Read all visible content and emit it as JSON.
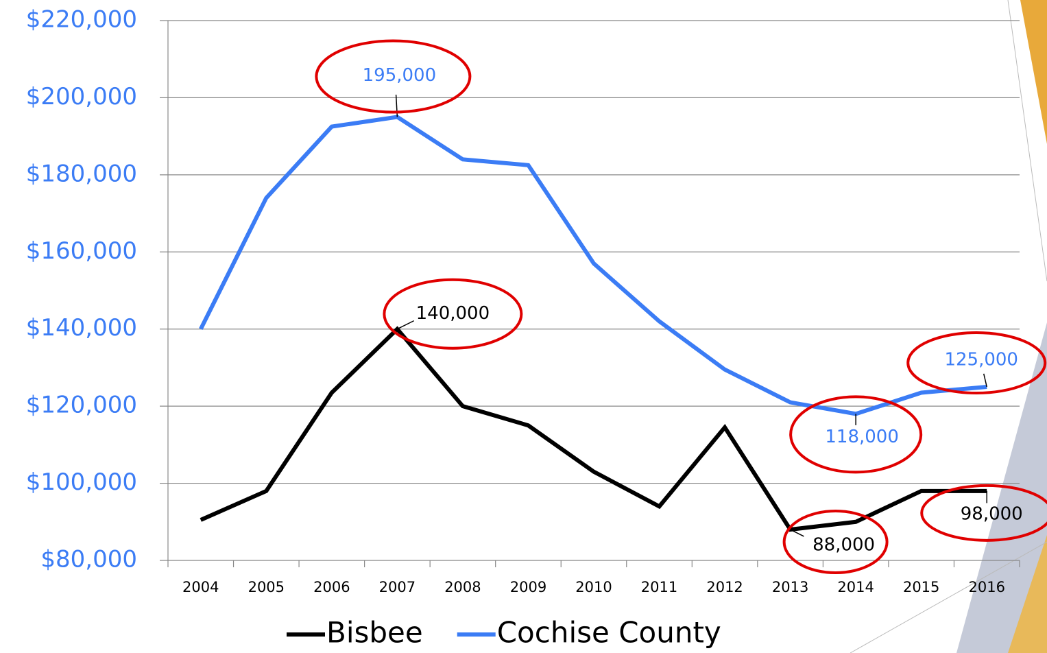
{
  "chart_data": {
    "type": "line",
    "categories": [
      "2004",
      "2005",
      "2006",
      "2007",
      "2008",
      "2009",
      "2010",
      "2011",
      "2012",
      "2013",
      "2014",
      "2015",
      "2016"
    ],
    "series": [
      {
        "name": "Bisbee",
        "color": "#000000",
        "values": [
          90500,
          98000,
          123500,
          140000,
          120000,
          115000,
          103000,
          94000,
          114500,
          88000,
          90000,
          98000,
          98000
        ],
        "value_labels": [
          null,
          null,
          null,
          "140,000",
          null,
          null,
          null,
          null,
          null,
          "88,000",
          null,
          null,
          "98,000"
        ]
      },
      {
        "name": "Cochise County",
        "color": "#3b7cf5",
        "values": [
          140000,
          174000,
          192500,
          195000,
          184000,
          182500,
          157000,
          142000,
          129500,
          121000,
          118000,
          123500,
          125000
        ],
        "value_labels": [
          null,
          null,
          null,
          "195,000",
          null,
          null,
          null,
          null,
          null,
          null,
          "118,000",
          null,
          "125,000"
        ]
      }
    ],
    "ylim": [
      80000,
      220000
    ],
    "yticks": [
      {
        "value": 80000,
        "label": "$80,000"
      },
      {
        "value": 100000,
        "label": "$100,000"
      },
      {
        "value": 120000,
        "label": "$120,000"
      },
      {
        "value": 140000,
        "label": "$140,000"
      },
      {
        "value": 160000,
        "label": "$160,000"
      },
      {
        "value": 180000,
        "label": "$180,000"
      },
      {
        "value": 200000,
        "label": "$200,000"
      },
      {
        "value": 220000,
        "label": "$220,000"
      }
    ],
    "grid": true,
    "legend": "bottom"
  }
}
